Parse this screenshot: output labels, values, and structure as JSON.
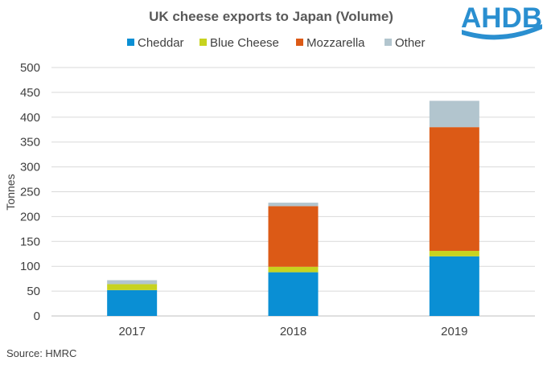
{
  "chart_data": {
    "type": "bar",
    "stacked": true,
    "title": "UK cheese exports to Japan (Volume)",
    "xlabel": "",
    "ylabel": "Tonnes",
    "ylim": [
      0,
      500
    ],
    "yticks": [
      0,
      50,
      100,
      150,
      200,
      250,
      300,
      350,
      400,
      450,
      500
    ],
    "grid": true,
    "legend_position": "top",
    "categories": [
      "2017",
      "2018",
      "2019"
    ],
    "series": [
      {
        "name": "Cheddar",
        "color": "#0a8fd4",
        "values": [
          52,
          88,
          120
        ]
      },
      {
        "name": "Blue Cheese",
        "color": "#c7d31f",
        "values": [
          12,
          11,
          11
        ]
      },
      {
        "name": "Mozzarella",
        "color": "#dc5a16",
        "values": [
          0,
          122,
          249
        ]
      },
      {
        "name": "Other",
        "color": "#b2c5ce",
        "values": [
          8,
          7,
          53
        ]
      }
    ]
  },
  "source": "Source: HMRC",
  "logo": {
    "text": "AHDB",
    "color": "#2a8fd0"
  }
}
